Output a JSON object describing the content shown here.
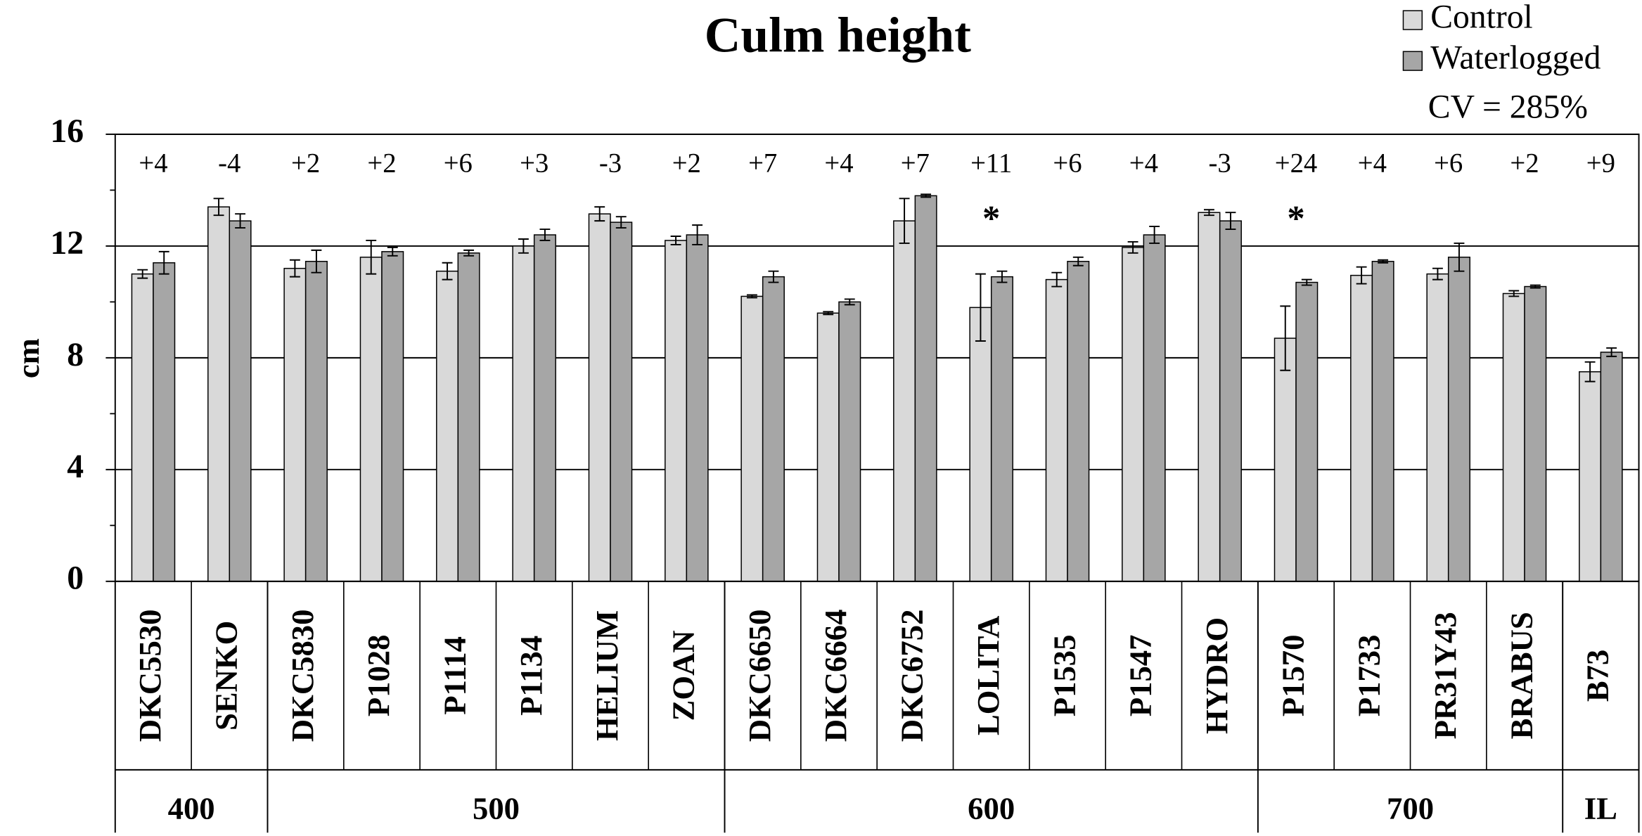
{
  "chart_data": {
    "type": "bar",
    "title": "Culm height",
    "y_label": "cm",
    "note": "CV = 285%",
    "categories": [
      "DKC5530",
      "SENKO",
      "DKC5830",
      "P1028",
      "P1114",
      "P1134",
      "HELIUM",
      "ZOAN",
      "DKC6650",
      "DKC6664",
      "DKC6752",
      "LOLITA",
      "P1535",
      "P1547",
      "HYDRO",
      "P1570",
      "P1733",
      "PR31Y43",
      "BRABUS",
      "B73"
    ],
    "groups": [
      {
        "label": "400",
        "categories": [
          "DKC5530",
          "SENKO"
        ]
      },
      {
        "label": "500",
        "categories": [
          "DKC5830",
          "P1028",
          "P1114",
          "P1134",
          "HELIUM",
          "ZOAN"
        ]
      },
      {
        "label": "600",
        "categories": [
          "DKC6650",
          "DKC6664",
          "DKC6752",
          "LOLITA",
          "P1535",
          "P1547",
          "HYDRO"
        ]
      },
      {
        "label": "700",
        "categories": [
          "P1570",
          "P1733",
          "PR31Y43",
          "BRABUS"
        ]
      },
      {
        "label": "IL",
        "categories": [
          "B73"
        ]
      }
    ],
    "series": [
      {
        "name": "Control",
        "color": "#d9d9d9",
        "values": [
          11.0,
          13.4,
          11.2,
          11.6,
          11.1,
          12.0,
          13.15,
          12.2,
          10.2,
          9.6,
          12.9,
          9.8,
          10.8,
          11.95,
          13.2,
          8.7,
          10.95,
          11.0,
          10.3,
          7.5
        ],
        "errors": [
          0.15,
          0.3,
          0.3,
          0.6,
          0.3,
          0.25,
          0.25,
          0.15,
          0.05,
          0.05,
          0.8,
          1.2,
          0.25,
          0.2,
          0.1,
          1.15,
          0.3,
          0.2,
          0.1,
          0.35
        ]
      },
      {
        "name": "Waterlogged",
        "color": "#a6a6a6",
        "values": [
          11.4,
          12.9,
          11.45,
          11.8,
          11.75,
          12.4,
          12.85,
          12.4,
          10.9,
          10.0,
          13.8,
          10.9,
          11.45,
          12.4,
          12.9,
          10.7,
          11.45,
          11.6,
          10.55,
          8.2
        ],
        "errors": [
          0.4,
          0.25,
          0.4,
          0.15,
          0.1,
          0.2,
          0.2,
          0.35,
          0.2,
          0.1,
          0.05,
          0.2,
          0.15,
          0.3,
          0.3,
          0.1,
          0.05,
          0.5,
          0.05,
          0.15
        ]
      }
    ],
    "differences": [
      "+4",
      "-4",
      "+2",
      "+2",
      "+6",
      "+3",
      "-3",
      "+2",
      "+7",
      "+4",
      "+7",
      "+11",
      "+6",
      "+4",
      "-3",
      "+24",
      "+4",
      "+6",
      "+2",
      "+9"
    ],
    "significance": [
      {
        "category": "LOLITA",
        "label": "*"
      },
      {
        "category": "P1570",
        "label": "*"
      }
    ],
    "ylim": [
      0,
      16
    ],
    "yticks": [
      0,
      4,
      8,
      12,
      16
    ],
    "yticks_minor": [
      2,
      6,
      10,
      14
    ],
    "grid": true,
    "legend": "top-right"
  }
}
